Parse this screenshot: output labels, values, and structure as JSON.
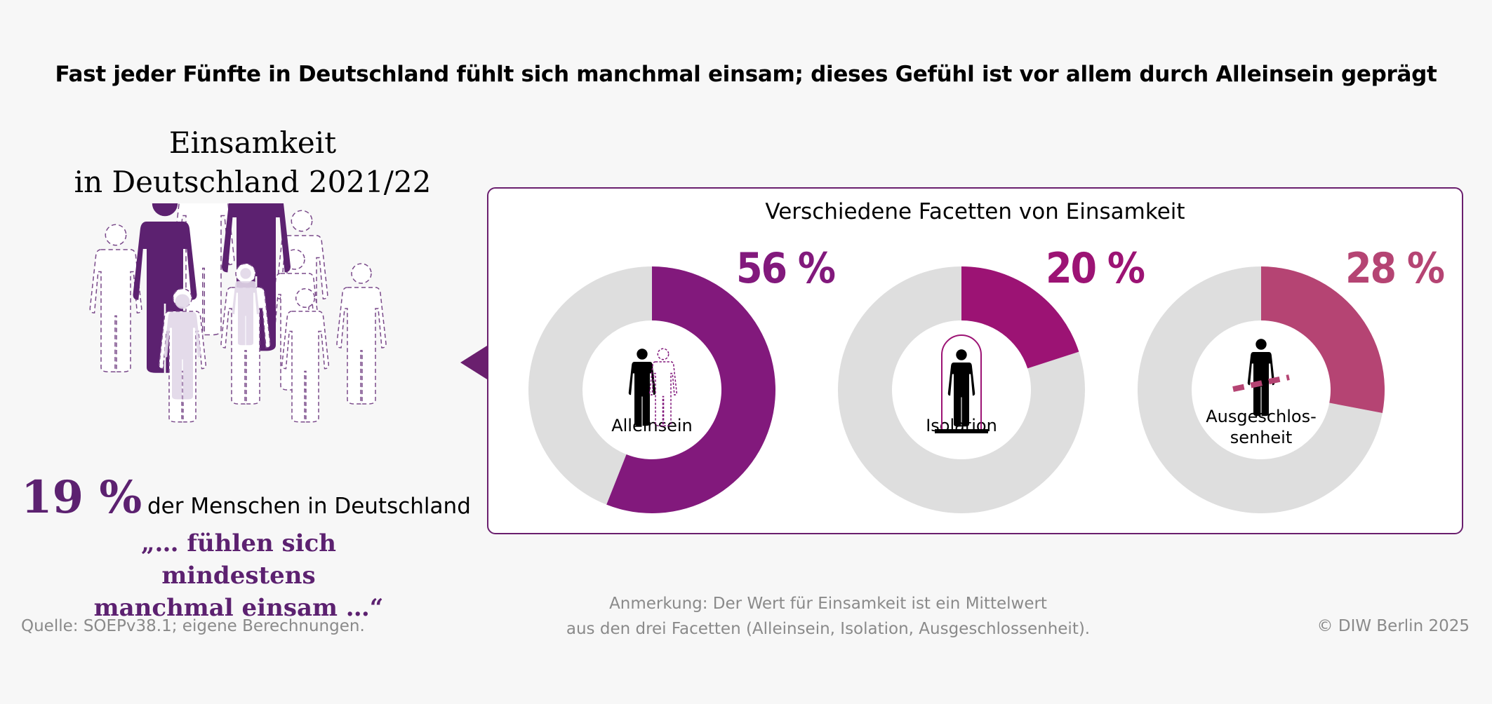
{
  "headline": "Fast jeder Fünfte in Deutschland fühlt sich manchmal einsam; dieses Gefühl ist vor allem durch Alleinsein geprägt",
  "left": {
    "title_line1": "Einsamkeit",
    "title_line2": "in Deutschland 2021/22",
    "percent": "19 %",
    "percent_text": "der Menschen in Deutschland",
    "quote_line1": "„… fühlen sich mindestens",
    "quote_line2": "manchmal einsam …“"
  },
  "chart_data": {
    "type": "pie",
    "title": "Verschiedene Facetten von Einsamkeit",
    "categories": [
      "Alleinsein",
      "Isolation",
      "Ausgeschlossenheit"
    ],
    "labels": [
      "Alleinsein",
      "Isolation",
      "Ausgeschlos-\nsenheit"
    ],
    "values": [
      56,
      20,
      28
    ],
    "value_labels": [
      "56 %",
      "20 %",
      "28 %"
    ],
    "colors": [
      "#82197c",
      "#9c1374",
      "#b54473"
    ],
    "remainder_color": "#dedede",
    "icons": [
      "alone-person-icon",
      "isolated-person-icon",
      "excluded-person-icon"
    ]
  },
  "footer": {
    "source": "Quelle: SOEPv38.1; eigene Berechnungen.",
    "note_line1": "Anmerkung: Der Wert für Einsamkeit ist ein Mittelwert",
    "note_line2": "aus den drei Facetten (Alleinsein, Isolation, Ausgeschlossenheit).",
    "copyright": "© DIW Berlin 2025"
  }
}
